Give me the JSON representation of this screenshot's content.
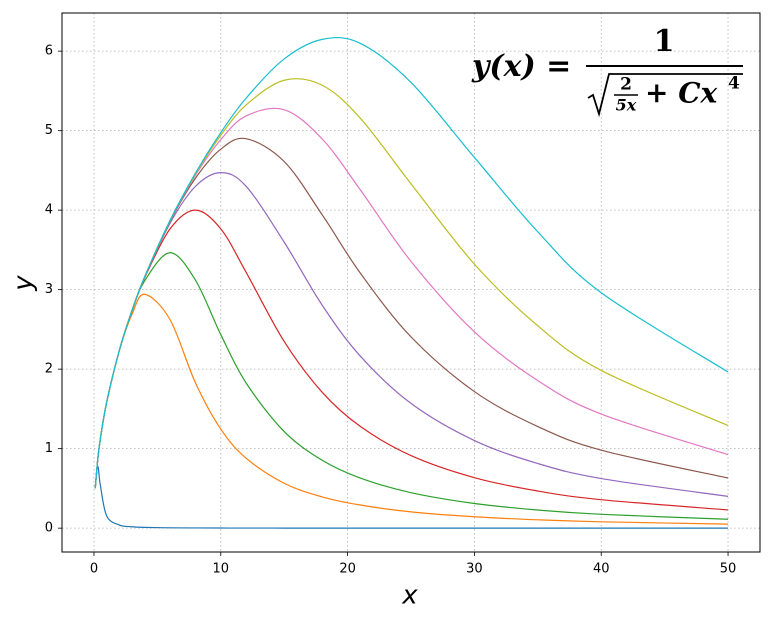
{
  "chart_data": {
    "type": "line",
    "x_label": "x",
    "y_label": "y",
    "annotation": {
      "lhs": "y(x) =",
      "numerator": "1",
      "inner_numerator": "2",
      "inner_denominator": "5x",
      "rest": "+ Cx",
      "exponent": "4"
    },
    "x": [
      0.1,
      0.3,
      0.5,
      1,
      2,
      3,
      4,
      6,
      8,
      10,
      12,
      15,
      18,
      21,
      25,
      30,
      35,
      40,
      50
    ],
    "series": [
      {
        "color": "#1f77b4",
        "values": [
          0.5,
          0.775,
          0.545,
          0.155,
          0.039,
          0.0173,
          0.0097,
          0.0043,
          0.0024,
          0.0016,
          0.0011,
          0.0007,
          0.0005,
          0.0004,
          0.0002,
          0.0002,
          0.0001,
          0.0001,
          0.0001
        ]
      },
      {
        "color": "#ff7f0e",
        "values": [
          0.5,
          0.866,
          1.118,
          1.581,
          2.231,
          2.69,
          2.942,
          2.623,
          1.829,
          1.246,
          0.88,
          0.565,
          0.393,
          0.291,
          0.205,
          0.143,
          0.105,
          0.08,
          0.051
        ]
      },
      {
        "color": "#2ca02c",
        "values": [
          0.5,
          0.866,
          1.118,
          1.581,
          2.235,
          2.728,
          3.112,
          3.464,
          3.121,
          2.435,
          1.826,
          1.215,
          0.854,
          0.63,
          0.446,
          0.31,
          0.228,
          0.174,
          0.112
        ]
      },
      {
        "color": "#d62728",
        "values": [
          0.5,
          0.866,
          1.118,
          1.581,
          2.236,
          2.736,
          3.15,
          3.764,
          4.0,
          3.765,
          3.218,
          2.348,
          1.709,
          1.28,
          0.913,
          0.635,
          0.467,
          0.358,
          0.229
        ]
      },
      {
        "color": "#9467bd",
        "values": [
          0.5,
          0.866,
          1.118,
          1.581,
          2.236,
          2.738,
          3.158,
          3.836,
          4.299,
          4.472,
          4.3,
          3.598,
          2.804,
          2.165,
          1.569,
          1.102,
          0.813,
          0.624,
          0.4
        ]
      },
      {
        "color": "#8c564b",
        "values": [
          0.5,
          0.866,
          1.118,
          1.581,
          2.236,
          2.739,
          3.16,
          3.858,
          4.401,
          4.767,
          4.899,
          4.612,
          3.941,
          3.209,
          2.406,
          1.718,
          1.278,
          0.981,
          0.631
        ]
      },
      {
        "color": "#e377c2",
        "values": [
          0.5,
          0.866,
          1.118,
          1.581,
          2.236,
          2.739,
          3.161,
          3.866,
          4.438,
          4.887,
          5.185,
          5.264,
          4.895,
          4.257,
          3.356,
          2.469,
          1.856,
          1.435,
          0.925
        ]
      },
      {
        "color": "#bcbd22",
        "values": [
          0.5,
          0.866,
          1.118,
          1.581,
          2.236,
          2.739,
          3.162,
          3.869,
          4.455,
          4.941,
          5.323,
          5.634,
          5.571,
          5.157,
          4.332,
          3.321,
          2.545,
          1.984,
          1.291
        ]
      },
      {
        "color": "#17becf",
        "values": [
          0.5,
          0.866,
          1.118,
          1.581,
          2.236,
          2.739,
          3.162,
          3.871,
          4.465,
          4.975,
          5.409,
          5.902,
          6.148,
          6.099,
          5.607,
          4.663,
          3.727,
          2.961,
          1.964
        ]
      }
    ],
    "xlim": [
      -2.52,
      52.52
    ],
    "ylim": [
      -0.3,
      6.48
    ],
    "xticks": [
      0,
      10,
      20,
      30,
      40,
      50
    ],
    "yticks": [
      0,
      1,
      2,
      3,
      4,
      5,
      6
    ],
    "grid": true
  }
}
